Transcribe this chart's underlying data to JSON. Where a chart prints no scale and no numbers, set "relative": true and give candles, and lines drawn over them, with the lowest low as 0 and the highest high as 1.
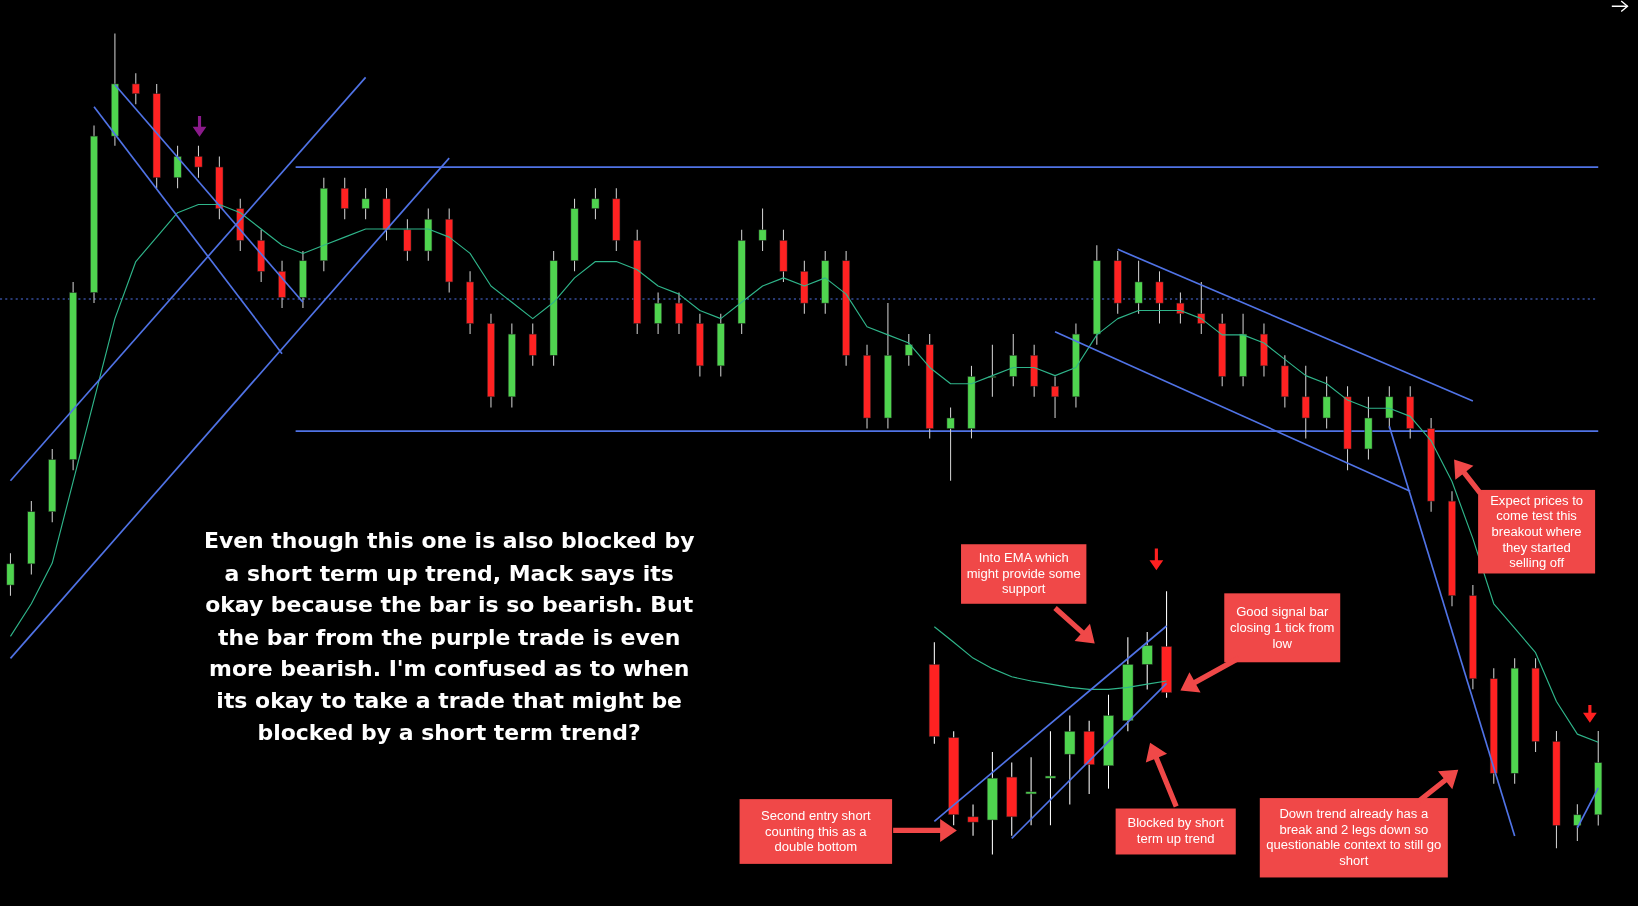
{
  "chart_data": [
    {
      "type": "candlestick",
      "relative": true,
      "categories": [
        null,
        null,
        null,
        null,
        null,
        null,
        null,
        null,
        null,
        null,
        null,
        null,
        null,
        null,
        null,
        null,
        null,
        null,
        null,
        null,
        null,
        null,
        null,
        null,
        null,
        null,
        null,
        null,
        null,
        null,
        null,
        null,
        null,
        null,
        null,
        null,
        null,
        null,
        null,
        null,
        null,
        null,
        null,
        null,
        null,
        null,
        null,
        null,
        null,
        null,
        null,
        null,
        null,
        null,
        null,
        null,
        null,
        null,
        null,
        null,
        null,
        null,
        null,
        null,
        null,
        null,
        null,
        null,
        null,
        null,
        null,
        null,
        null,
        null,
        null,
        null,
        null
      ],
      "ohlc": [
        [
          0.323,
          0.362,
          0.31,
          0.349
        ],
        [
          0.349,
          0.426,
          0.336,
          0.413
        ],
        [
          0.413,
          0.49,
          0.4,
          0.477
        ],
        [
          0.477,
          0.695,
          0.464,
          0.682
        ],
        [
          0.682,
          0.887,
          0.669,
          0.874
        ],
        [
          0.874,
          1,
          0.862,
          0.938
        ],
        [
          0.938,
          0.951,
          0.913,
          0.926
        ],
        [
          0.926,
          0.938,
          0.81,
          0.823
        ],
        [
          0.823,
          0.862,
          0.81,
          0.849
        ],
        [
          0.849,
          0.862,
          0.823,
          0.836
        ],
        [
          0.836,
          0.849,
          0.772,
          0.785
        ],
        [
          0.785,
          0.797,
          0.733,
          0.746
        ],
        [
          0.746,
          0.759,
          0.695,
          0.708
        ],
        [
          0.708,
          0.721,
          0.663,
          0.676
        ],
        [
          0.676,
          0.733,
          0.663,
          0.721
        ],
        [
          0.721,
          0.823,
          0.708,
          0.81
        ],
        [
          0.81,
          0.823,
          0.772,
          0.785
        ],
        [
          0.785,
          0.81,
          0.772,
          0.797
        ],
        [
          0.797,
          0.81,
          0.746,
          0.759
        ],
        [
          0.759,
          0.772,
          0.721,
          0.733
        ],
        [
          0.733,
          0.785,
          0.721,
          0.772
        ],
        [
          0.772,
          0.785,
          0.682,
          0.695
        ],
        [
          0.695,
          0.708,
          0.631,
          0.644
        ],
        [
          0.644,
          0.656,
          0.541,
          0.554
        ],
        [
          0.554,
          0.644,
          0.541,
          0.631
        ],
        [
          0.631,
          0.644,
          0.592,
          0.605
        ],
        [
          0.605,
          0.733,
          0.592,
          0.721
        ],
        [
          0.721,
          0.797,
          0.708,
          0.785
        ],
        [
          0.785,
          0.81,
          0.772,
          0.797
        ],
        [
          0.797,
          0.81,
          0.733,
          0.746
        ],
        [
          0.746,
          0.759,
          0.631,
          0.644
        ],
        [
          0.644,
          0.682,
          0.631,
          0.669
        ],
        [
          0.669,
          0.682,
          0.631,
          0.644
        ],
        [
          0.644,
          0.656,
          0.579,
          0.592
        ],
        [
          0.592,
          0.656,
          0.579,
          0.644
        ],
        [
          0.644,
          0.759,
          0.631,
          0.746
        ],
        [
          0.746,
          0.785,
          0.733,
          0.759
        ],
        [
          0.746,
          0.759,
          0.695,
          0.708
        ],
        [
          0.708,
          0.721,
          0.656,
          0.669
        ],
        [
          0.669,
          0.733,
          0.656,
          0.721
        ],
        [
          0.721,
          0.733,
          0.592,
          0.605
        ],
        [
          0.605,
          0.618,
          0.515,
          0.528
        ],
        [
          0.528,
          0.669,
          0.515,
          0.605
        ],
        [
          0.605,
          0.631,
          0.592,
          0.618
        ],
        [
          0.618,
          0.631,
          0.503,
          0.515
        ],
        [
          0.515,
          0.541,
          0.451,
          0.528
        ],
        [
          0.515,
          0.592,
          0.503,
          0.579
        ],
        [
          0.579,
          0.618,
          0.554,
          0.579
        ],
        [
          0.579,
          0.631,
          0.567,
          0.605
        ],
        [
          0.605,
          0.618,
          0.554,
          0.567
        ],
        [
          0.567,
          0.579,
          0.528,
          0.554
        ],
        [
          0.554,
          0.644,
          0.541,
          0.631
        ],
        [
          0.631,
          0.74,
          0.618,
          0.721
        ],
        [
          0.721,
          0.733,
          0.656,
          0.669
        ],
        [
          0.669,
          0.721,
          0.656,
          0.695
        ],
        [
          0.695,
          0.708,
          0.644,
          0.669
        ],
        [
          0.669,
          0.682,
          0.644,
          0.656
        ],
        [
          0.656,
          0.695,
          0.631,
          0.644
        ],
        [
          0.644,
          0.656,
          0.567,
          0.579
        ],
        [
          0.579,
          0.656,
          0.567,
          0.631
        ],
        [
          0.631,
          0.644,
          0.579,
          0.592
        ],
        [
          0.592,
          0.605,
          0.541,
          0.554
        ],
        [
          0.554,
          0.592,
          0.503,
          0.528
        ],
        [
          0.528,
          0.579,
          0.515,
          0.554
        ],
        [
          0.554,
          0.567,
          0.464,
          0.49
        ],
        [
          0.49,
          0.554,
          0.477,
          0.528
        ],
        [
          0.528,
          0.567,
          0.515,
          0.554
        ],
        [
          0.554,
          0.567,
          0.503,
          0.515
        ],
        [
          0.515,
          0.528,
          0.413,
          0.426
        ],
        [
          0.426,
          0.438,
          0.297,
          0.31
        ],
        [
          0.31,
          0.323,
          0.195,
          0.208
        ],
        [
          0.208,
          0.221,
          0.079,
          0.092
        ],
        [
          0.092,
          0.233,
          0.079,
          0.221
        ],
        [
          0.221,
          0.233,
          0.118,
          0.131
        ],
        [
          0.131,
          0.144,
          0,
          0.028
        ],
        [
          0.028,
          0.054,
          0.009,
          0.041
        ],
        [
          0.041,
          0.144,
          0.028,
          0.105
        ]
      ],
      "series": [
        {
          "type": "line",
          "color": "#2fb58a",
          "values": [
            0.26,
            0.3,
            0.35,
            0.45,
            0.55,
            0.65,
            0.72,
            0.75,
            0.78,
            0.79,
            0.79,
            0.78,
            0.76,
            0.74,
            0.73,
            0.74,
            0.75,
            0.76,
            0.76,
            0.76,
            0.76,
            0.75,
            0.73,
            0.69,
            0.67,
            0.65,
            0.67,
            0.7,
            0.72,
            0.72,
            0.71,
            0.69,
            0.68,
            0.66,
            0.65,
            0.67,
            0.69,
            0.7,
            0.69,
            0.7,
            0.68,
            0.64,
            0.63,
            0.62,
            0.59,
            0.57,
            0.57,
            0.58,
            0.59,
            0.59,
            0.58,
            0.59,
            0.63,
            0.65,
            0.66,
            0.66,
            0.66,
            0.65,
            0.63,
            0.63,
            0.62,
            0.6,
            0.58,
            0.57,
            0.55,
            0.54,
            0.54,
            0.53,
            0.5,
            0.45,
            0.38,
            0.3,
            0.27,
            0.24,
            0.18,
            0.14,
            0.13
          ]
        },
        {
          "type": "line",
          "color": "#5073e6",
          "values": [
            0.451,
            null,
            null,
            null,
            null,
            null,
            null,
            null,
            null,
            null,
            null,
            null,
            null,
            null,
            null,
            null,
            null,
            0.946,
            null,
            null,
            null,
            null,
            null,
            null,
            null,
            null,
            null,
            null,
            null,
            null,
            null,
            null,
            null,
            null,
            null,
            null,
            null,
            null,
            null,
            null,
            null,
            null,
            null,
            null,
            null,
            null,
            null,
            null,
            null,
            null,
            null,
            null,
            null,
            null,
            null,
            null,
            null,
            null,
            null,
            null,
            null,
            null,
            null,
            null,
            null,
            null,
            null,
            null,
            null,
            null,
            null,
            null,
            null,
            null,
            null,
            null,
            null
          ]
        },
        {
          "type": "line",
          "color": "#5073e6",
          "values": [
            0.233,
            null,
            null,
            null,
            null,
            null,
            null,
            null,
            null,
            null,
            null,
            null,
            null,
            null,
            null,
            null,
            null,
            null,
            null,
            null,
            null,
            0.847,
            null,
            null,
            null,
            null,
            null,
            null,
            null,
            null,
            null,
            null,
            null,
            null,
            null,
            null,
            null,
            null,
            null,
            null,
            null,
            null,
            null,
            null,
            null,
            null,
            null,
            null,
            null,
            null,
            null,
            null,
            null,
            null,
            null,
            null,
            null,
            null,
            null,
            null,
            null,
            null,
            null,
            null,
            null,
            null,
            null,
            null,
            null,
            null,
            null,
            null,
            null,
            null,
            null,
            null,
            null
          ]
        },
        {
          "type": "line",
          "color": "#5073e6",
          "values": [
            null,
            null,
            null,
            null,
            null,
            0.937,
            null,
            null,
            null,
            null,
            null,
            null,
            null,
            null,
            0.67,
            null,
            null,
            null,
            null,
            null,
            null,
            null,
            null,
            null,
            null,
            null,
            null,
            null,
            null,
            null,
            null,
            null,
            null,
            null,
            null,
            null,
            null,
            null,
            null,
            null,
            null,
            null,
            null,
            null,
            null,
            null,
            null,
            null,
            null,
            null,
            null,
            null,
            null,
            null,
            null,
            null,
            null,
            null,
            null,
            null,
            null,
            null,
            null,
            null,
            null,
            null,
            null,
            null,
            null,
            null,
            null,
            null,
            null,
            null,
            null,
            null,
            null
          ]
        },
        {
          "type": "line",
          "color": "#5073e6",
          "values": [
            null,
            null,
            null,
            null,
            0.91,
            null,
            null,
            null,
            null,
            null,
            null,
            null,
            null,
            0.607,
            null,
            null,
            null,
            null,
            null,
            null,
            null,
            null,
            null,
            null,
            null,
            null,
            null,
            null,
            null,
            null,
            null,
            null,
            null,
            null,
            null,
            null,
            null,
            null,
            null,
            null,
            null,
            null,
            null,
            null,
            null,
            null,
            null,
            null,
            null,
            null,
            null,
            null,
            null,
            null,
            null,
            null,
            null,
            null,
            null,
            null,
            null,
            null,
            null,
            null,
            null,
            null,
            null,
            null,
            null,
            null,
            null,
            null,
            null,
            null,
            null,
            null,
            null
          ]
        },
        {
          "type": "line",
          "color": "#5073e6",
          "values": [
            null,
            null,
            null,
            null,
            null,
            null,
            null,
            null,
            null,
            null,
            null,
            null,
            null,
            null,
            null,
            null,
            null,
            null,
            null,
            null,
            null,
            null,
            null,
            null,
            null,
            null,
            null,
            null,
            null,
            null,
            null,
            null,
            null,
            null,
            null,
            null,
            null,
            null,
            null,
            null,
            null,
            null,
            null,
            null,
            null,
            null,
            null,
            null,
            null,
            null,
            null,
            null,
            null,
            0.735,
            null,
            null,
            null,
            null,
            null,
            null,
            null,
            null,
            null,
            null,
            null,
            null,
            null,
            null,
            null,
            null,
            0.549,
            null,
            null,
            null,
            null,
            null,
            null
          ]
        },
        {
          "type": "line",
          "color": "#5073e6",
          "values": [
            null,
            null,
            null,
            null,
            null,
            null,
            null,
            null,
            null,
            null,
            null,
            null,
            null,
            null,
            null,
            null,
            null,
            null,
            null,
            null,
            null,
            null,
            null,
            null,
            null,
            null,
            null,
            null,
            null,
            null,
            null,
            null,
            null,
            null,
            null,
            null,
            null,
            null,
            null,
            null,
            null,
            null,
            null,
            null,
            null,
            null,
            null,
            null,
            null,
            null,
            0.634,
            null,
            null,
            null,
            null,
            null,
            null,
            null,
            null,
            null,
            null,
            null,
            null,
            null,
            null,
            null,
            null,
            0.438,
            null,
            null,
            null,
            null,
            null,
            null,
            null,
            null,
            null
          ]
        },
        {
          "type": "line",
          "color": "#5073e6",
          "values": [
            null,
            null,
            null,
            null,
            null,
            null,
            null,
            null,
            null,
            null,
            null,
            null,
            null,
            null,
            null,
            null,
            null,
            null,
            null,
            null,
            null,
            null,
            null,
            null,
            null,
            null,
            null,
            null,
            null,
            null,
            null,
            null,
            null,
            null,
            null,
            null,
            null,
            null,
            null,
            null,
            null,
            null,
            null,
            null,
            null,
            null,
            null,
            null,
            null,
            null,
            null,
            null,
            null,
            null,
            null,
            null,
            null,
            null,
            null,
            null,
            null,
            null,
            null,
            null,
            null,
            null,
            0.518,
            null,
            null,
            null,
            null,
            null,
            0.015,
            null,
            null,
            null,
            null
          ]
        },
        {
          "type": "line",
          "color": "#5073e6",
          "values": [
            null,
            null,
            null,
            null,
            null,
            null,
            null,
            null,
            null,
            null,
            null,
            null,
            null,
            null,
            null,
            null,
            null,
            null,
            null,
            null,
            null,
            null,
            null,
            null,
            null,
            null,
            null,
            null,
            null,
            null,
            null,
            null,
            null,
            null,
            null,
            null,
            null,
            null,
            null,
            null,
            null,
            null,
            null,
            null,
            null,
            null,
            null,
            null,
            null,
            null,
            null,
            null,
            null,
            null,
            null,
            null,
            null,
            null,
            null,
            null,
            null,
            null,
            null,
            null,
            null,
            null,
            null,
            null,
            null,
            null,
            null,
            null,
            null,
            null,
            null,
            0.025,
            0.074
          ]
        }
      ],
      "ref_lines": [
        {
          "axis": "y",
          "value": 0.836,
          "color": "#5073e6"
        },
        {
          "axis": "y",
          "value": 0.674,
          "color": "#5073e6",
          "line_style": "dotted"
        },
        {
          "axis": "y",
          "value": 0.512,
          "color": "#5073e6"
        }
      ],
      "annotations": [
        "Even though this one is also blocked by a short term up trend, Mack says its okay because the bar is so bearish.  But the bar from the purple trade is even more bearish. I'm confused as to when its okay to take a trade that might be blocked by a short term trend?",
        "Expect prices to come test this breakout where they started selling off",
        "Down trend already has a break and 2 legs down so questionable context to still go short"
      ]
    },
    {
      "type": "candlestick",
      "relative": true,
      "categories": [
        null,
        null,
        null,
        null,
        null,
        null,
        null,
        null,
        null,
        null,
        null,
        null,
        null
      ],
      "ohlc": [
        [
          0.722,
          0.806,
          0.421,
          0.448
        ],
        [
          0.444,
          0.468,
          0.111,
          0.151
        ],
        [
          0.143,
          0.19,
          0.071,
          0.123
        ],
        [
          0.131,
          0.389,
          0,
          0.29
        ],
        [
          0.294,
          0.349,
          0.071,
          0.143
        ],
        [
          0.23,
          0.369,
          0.111,
          0.238
        ],
        [
          0.29,
          0.468,
          0.111,
          0.298
        ],
        [
          0.381,
          0.528,
          0.19,
          0.468
        ],
        [
          0.468,
          0.508,
          0.23,
          0.341
        ],
        [
          0.337,
          0.607,
          0.25,
          0.528
        ],
        [
          0.508,
          0.825,
          0.468,
          0.722
        ],
        [
          0.722,
          0.845,
          0.627,
          0.794
        ],
        [
          0.79,
          1,
          0.595,
          0.615
        ]
      ],
      "series": [
        {
          "type": "line",
          "color": "#2fb58a",
          "values": [
            0.865,
            0.806,
            0.746,
            0.706,
            0.675,
            0.659,
            0.647,
            0.635,
            0.627,
            0.627,
            0.635,
            0.647,
            0.659
          ]
        },
        {
          "type": "line",
          "color": "#5073e6",
          "values": [
            0.126,
            null,
            null,
            null,
            null,
            null,
            null,
            null,
            null,
            null,
            null,
            null,
            0.868
          ]
        },
        {
          "type": "line",
          "color": "#5073e6",
          "values": [
            null,
            null,
            null,
            null,
            0.061,
            null,
            null,
            null,
            null,
            null,
            null,
            null,
            0.65
          ]
        }
      ],
      "annotations": [
        "Into EMA which might provide some support",
        "Good signal bar closing 1 tick from low",
        "Second entry short counting this as a double bottom",
        "Blocked by short term up trend"
      ]
    }
  ]
}
